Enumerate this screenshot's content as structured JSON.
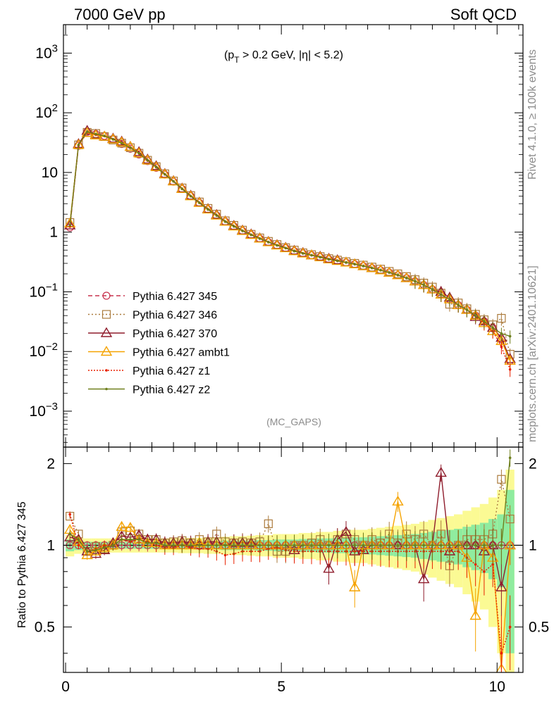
{
  "header": {
    "left": "7000 GeV pp",
    "right": "Soft QCD"
  },
  "side_text": {
    "top": "Rivet 4.1.0, ≥ 100k events",
    "bottom": "mcplots.cern.ch [arXiv:2401.10621]"
  },
  "cut_label": "(p_T > 0.2 GeV, |η| < 5.2)",
  "analysis_label": "(MC_GAPS)",
  "ratio_ylabel": "Ratio to Pythia 6.427 345",
  "chart_data": [
    {
      "type": "line",
      "yscale": "log",
      "xlim": [
        -0.05,
        10.6
      ],
      "ylim": [
        0.00025,
        3000
      ],
      "ytick_labels": [
        "10^-3",
        "10^-2",
        "10^-1",
        "1",
        "10",
        "10^2",
        "10^3"
      ],
      "ytick_values": [
        0.001,
        0.01,
        0.1,
        1,
        10,
        100,
        1000
      ],
      "x": [
        0.1,
        0.3,
        0.5,
        0.7,
        0.9,
        1.1,
        1.3,
        1.5,
        1.7,
        1.9,
        2.1,
        2.3,
        2.5,
        2.7,
        2.9,
        3.1,
        3.3,
        3.5,
        3.7,
        3.9,
        4.1,
        4.3,
        4.5,
        4.7,
        4.9,
        5.1,
        5.3,
        5.5,
        5.7,
        5.9,
        6.1,
        6.3,
        6.5,
        6.7,
        6.9,
        7.1,
        7.3,
        7.5,
        7.7,
        7.9,
        8.1,
        8.3,
        8.5,
        8.7,
        8.9,
        9.1,
        9.3,
        9.5,
        9.7,
        9.9,
        10.1,
        10.3
      ],
      "series": [
        {
          "name": "Pythia 6.427 345",
          "color": "#c8334f",
          "marker": "circle",
          "dash": "6,4",
          "values": [
            1.2,
            28,
            48,
            44,
            41,
            36,
            30,
            25,
            20,
            15.5,
            12,
            9.2,
            7.0,
            5.3,
            4.0,
            3.1,
            2.4,
            1.9,
            1.5,
            1.25,
            1.05,
            0.9,
            0.78,
            0.68,
            0.6,
            0.54,
            0.48,
            0.44,
            0.41,
            0.38,
            0.35,
            0.33,
            0.31,
            0.29,
            0.27,
            0.25,
            0.23,
            0.21,
            0.19,
            0.17,
            0.15,
            0.13,
            0.11,
            0.09,
            0.075,
            0.06,
            0.05,
            0.04,
            0.032,
            0.025,
            0.016,
            0.007
          ]
        },
        {
          "name": "Pythia 6.427 346",
          "color": "#ab7b3d",
          "marker": "square",
          "dash": "2,3",
          "values": [
            1.45,
            29,
            47,
            45,
            40,
            35,
            31,
            26,
            21,
            16,
            12.5,
            9.5,
            7.2,
            5.5,
            4.1,
            3.2,
            2.5,
            2.0,
            1.55,
            1.3,
            1.08,
            0.92,
            0.8,
            0.7,
            0.62,
            0.55,
            0.5,
            0.45,
            0.42,
            0.39,
            0.36,
            0.34,
            0.32,
            0.3,
            0.28,
            0.26,
            0.24,
            0.22,
            0.2,
            0.18,
            0.16,
            0.14,
            0.12,
            0.095,
            0.062,
            0.065,
            0.052,
            0.042,
            0.034,
            0.028,
            0.036,
            0.009
          ]
        },
        {
          "name": "Pythia 6.427 370",
          "color": "#8f1c2c",
          "marker": "triangle",
          "dash": "",
          "values": [
            1.3,
            30,
            50,
            43,
            40,
            37,
            33,
            27,
            22,
            16.5,
            12.8,
            9.5,
            7.2,
            5.4,
            4.1,
            3.15,
            2.45,
            1.95,
            1.52,
            1.28,
            1.07,
            0.92,
            0.79,
            0.69,
            0.61,
            0.55,
            0.49,
            0.45,
            0.41,
            0.39,
            0.36,
            0.34,
            0.31,
            0.29,
            0.27,
            0.25,
            0.23,
            0.21,
            0.19,
            0.17,
            0.15,
            0.13,
            0.11,
            0.1,
            0.08,
            0.06,
            0.05,
            0.038,
            0.032,
            0.025,
            0.017,
            0.0075
          ]
        },
        {
          "name": "Pythia 6.427 ambt1",
          "color": "#f5a300",
          "marker": "triangle",
          "dash": "",
          "values": [
            1.4,
            29,
            46,
            42,
            40,
            36,
            32,
            27,
            21,
            16,
            12.3,
            9.3,
            7.1,
            5.3,
            4.0,
            3.1,
            2.4,
            1.9,
            1.5,
            1.25,
            1.05,
            0.9,
            0.78,
            0.68,
            0.6,
            0.54,
            0.48,
            0.44,
            0.41,
            0.38,
            0.35,
            0.33,
            0.31,
            0.29,
            0.27,
            0.25,
            0.23,
            0.21,
            0.19,
            0.17,
            0.15,
            0.13,
            0.11,
            0.09,
            0.075,
            0.06,
            0.05,
            0.04,
            0.03,
            0.022,
            0.015,
            0.007
          ]
        },
        {
          "name": "Pythia 6.427 z1",
          "color": "#e82000",
          "marker": "dot",
          "dash": "2,2",
          "values": [
            1.25,
            28,
            47,
            43,
            41,
            36,
            31,
            26,
            21,
            15.8,
            12.2,
            9.3,
            7.1,
            5.3,
            4.0,
            3.1,
            2.4,
            1.9,
            1.5,
            1.25,
            1.05,
            0.9,
            0.78,
            0.68,
            0.6,
            0.54,
            0.48,
            0.44,
            0.41,
            0.38,
            0.35,
            0.33,
            0.31,
            0.29,
            0.27,
            0.25,
            0.23,
            0.21,
            0.19,
            0.17,
            0.15,
            0.13,
            0.11,
            0.09,
            0.075,
            0.06,
            0.05,
            0.04,
            0.03,
            0.022,
            0.012,
            0.005
          ]
        },
        {
          "name": "Pythia 6.427 z2",
          "color": "#6e7f1c",
          "marker": "dot",
          "dash": "",
          "values": [
            1.3,
            29,
            48,
            44,
            41,
            36,
            31,
            26,
            21,
            16,
            12.3,
            9.3,
            7.1,
            5.3,
            4.0,
            3.1,
            2.4,
            1.9,
            1.5,
            1.25,
            1.05,
            0.9,
            0.78,
            0.68,
            0.6,
            0.54,
            0.48,
            0.44,
            0.41,
            0.38,
            0.35,
            0.33,
            0.31,
            0.29,
            0.27,
            0.25,
            0.23,
            0.21,
            0.19,
            0.17,
            0.15,
            0.13,
            0.11,
            0.09,
            0.075,
            0.06,
            0.05,
            0.04,
            0.032,
            0.025,
            0.02,
            0.018
          ]
        }
      ],
      "legend": [
        "Pythia 6.427 345",
        "Pythia 6.427 346",
        "Pythia 6.427 370",
        "Pythia 6.427 ambt1",
        "Pythia 6.427 z1",
        "Pythia 6.427 z2"
      ],
      "legend_position": "lower-left"
    },
    {
      "type": "line",
      "ylabel": "Ratio to Pythia 6.427 345",
      "xlim": [
        -0.05,
        10.6
      ],
      "ylim": [
        0.34,
        2.3
      ],
      "xtick_labels": [
        "0",
        "5",
        "10"
      ],
      "xtick_values": [
        0,
        5,
        10
      ],
      "ytick_labels": [
        "0.5",
        "1",
        "2"
      ],
      "ytick_values": [
        0.5,
        1,
        2
      ],
      "reference_line": 1,
      "bands": {
        "x_edges": [
          0.0,
          0.2,
          0.4,
          0.6,
          0.8,
          1.0,
          1.2,
          1.4,
          1.6,
          1.8,
          2.0,
          2.2,
          2.4,
          2.6,
          2.8,
          3.0,
          3.2,
          3.4,
          3.6,
          3.8,
          4.0,
          4.2,
          4.4,
          4.6,
          4.8,
          5.0,
          5.2,
          5.4,
          5.6,
          5.8,
          6.0,
          6.2,
          6.4,
          6.6,
          6.8,
          7.0,
          7.2,
          7.4,
          7.6,
          7.8,
          8.0,
          8.2,
          8.4,
          8.6,
          8.8,
          9.0,
          9.2,
          9.4,
          9.6,
          9.8,
          10.0,
          10.2,
          10.4
        ],
        "inner_halfwidth": [
          0.05,
          0.04,
          0.03,
          0.03,
          0.03,
          0.03,
          0.03,
          0.03,
          0.03,
          0.03,
          0.03,
          0.03,
          0.03,
          0.03,
          0.03,
          0.03,
          0.035,
          0.035,
          0.04,
          0.04,
          0.04,
          0.04,
          0.045,
          0.045,
          0.05,
          0.05,
          0.05,
          0.055,
          0.055,
          0.06,
          0.06,
          0.065,
          0.065,
          0.07,
          0.07,
          0.075,
          0.08,
          0.085,
          0.09,
          0.095,
          0.1,
          0.11,
          0.12,
          0.13,
          0.14,
          0.15,
          0.17,
          0.19,
          0.21,
          0.25,
          0.3,
          0.6
        ],
        "outer_halfwidth": [
          0.09,
          0.07,
          0.06,
          0.06,
          0.06,
          0.06,
          0.06,
          0.06,
          0.06,
          0.06,
          0.06,
          0.06,
          0.06,
          0.065,
          0.065,
          0.065,
          0.07,
          0.07,
          0.075,
          0.08,
          0.08,
          0.085,
          0.09,
          0.09,
          0.1,
          0.1,
          0.1,
          0.11,
          0.11,
          0.12,
          0.12,
          0.13,
          0.13,
          0.14,
          0.14,
          0.15,
          0.16,
          0.17,
          0.18,
          0.19,
          0.2,
          0.22,
          0.24,
          0.26,
          0.28,
          0.3,
          0.34,
          0.38,
          0.42,
          0.5,
          0.6,
          0.9
        ]
      },
      "series": [
        {
          "name": "Pythia 6.427 345",
          "values": [
            1,
            1,
            1,
            1,
            1,
            1,
            1,
            1,
            1,
            1,
            1,
            1,
            1,
            1,
            1,
            1,
            1,
            1,
            1,
            1,
            1,
            1,
            1,
            1,
            1,
            1,
            1,
            1,
            1,
            1,
            1,
            1,
            1,
            1,
            1,
            1,
            1,
            1,
            1,
            1,
            1,
            1,
            1,
            1,
            1,
            1,
            1,
            1,
            1,
            1,
            1,
            1
          ]
        },
        {
          "name": "Pythia 6.427 346",
          "values": [
            1.28,
            1.1,
            0.95,
            0.99,
            0.97,
            1.0,
            1.12,
            1.13,
            1.1,
            1.05,
            1.05,
            1.02,
            1.03,
            1.04,
            1.02,
            1.05,
            1.03,
            1.1,
            1.03,
            1.02,
            1.03,
            1.02,
            1.03,
            1.2,
            0.95,
            0.95,
            1.0,
            1.0,
            1.02,
            1.05,
            1.0,
            1.05,
            1.1,
            1.05,
            1.0,
            1.05,
            1.02,
            1.1,
            1.02,
            1.1,
            1.05,
            1.1,
            1.0,
            1.1,
            0.84,
            1.0,
            1.05,
            1.05,
            1.05,
            1.1,
            1.75,
            1.25
          ]
        },
        {
          "name": "Pythia 6.427 370",
          "values": [
            1.07,
            1.05,
            0.95,
            0.93,
            0.96,
            1.02,
            1.08,
            1.07,
            1.09,
            1.05,
            1.05,
            1.02,
            1.02,
            1.03,
            1.02,
            1.0,
            1.03,
            1.03,
            1.0,
            1.02,
            1.02,
            1.02,
            1.0,
            1.0,
            1.0,
            1.0,
            0.96,
            1.0,
            1.0,
            1.0,
            0.82,
            1.05,
            1.12,
            0.95,
            0.96,
            1.0,
            1.0,
            1.0,
            1.0,
            1.0,
            1.0,
            0.75,
            1.0,
            1.85,
            0.95,
            1.0,
            1.0,
            1.0,
            0.95,
            1.0,
            0.7,
            1.0
          ]
        },
        {
          "name": "Pythia 6.427 ambt1",
          "values": [
            1.14,
            1.03,
            0.92,
            0.95,
            0.98,
            1.0,
            1.17,
            1.16,
            1.05,
            1.02,
            1.02,
            1.0,
            1.0,
            1.0,
            1.0,
            1.02,
            1.0,
            1.0,
            1.0,
            1.0,
            1.0,
            1.0,
            1.0,
            1.0,
            1.0,
            1.0,
            1.0,
            1.0,
            1.0,
            1.0,
            1.0,
            1.0,
            1.0,
            0.7,
            1.0,
            1.0,
            1.0,
            1.0,
            1.45,
            1.0,
            1.0,
            1.0,
            1.0,
            1.0,
            1.0,
            1.0,
            0.9,
            0.55,
            1.0,
            0.9,
            0.35,
            1.0
          ]
        },
        {
          "name": "Pythia 6.427 z1",
          "values": [
            1.3,
            1.0,
            0.95,
            0.97,
            1.0,
            1.0,
            1.05,
            1.03,
            1.05,
            1.03,
            1.0,
            0.98,
            0.98,
            1.0,
            0.98,
            0.97,
            0.97,
            0.95,
            0.92,
            0.93,
            0.95,
            0.95,
            0.95,
            0.97,
            0.98,
            0.96,
            0.95,
            0.95,
            0.95,
            0.95,
            0.95,
            0.95,
            0.95,
            0.95,
            0.95,
            0.95,
            0.95,
            0.95,
            0.95,
            0.95,
            0.95,
            0.95,
            0.95,
            0.95,
            0.95,
            0.95,
            0.9,
            0.85,
            0.8,
            0.85,
            0.4,
            0.5
          ]
        },
        {
          "name": "Pythia 6.427 z2",
          "values": [
            1.1,
            1.05,
            0.95,
            0.96,
            0.98,
            1.0,
            1.05,
            1.05,
            1.05,
            1.02,
            1.02,
            1.0,
            1.0,
            1.0,
            1.0,
            1.0,
            1.0,
            1.0,
            1.0,
            1.0,
            1.0,
            1.0,
            1.0,
            1.0,
            1.0,
            1.0,
            1.0,
            1.0,
            1.0,
            1.0,
            1.0,
            1.0,
            1.0,
            1.0,
            1.0,
            1.0,
            1.0,
            1.0,
            1.0,
            1.0,
            1.0,
            1.0,
            1.0,
            1.0,
            1.0,
            1.0,
            1.0,
            1.0,
            1.0,
            1.0,
            1.0,
            2.1
          ]
        }
      ]
    }
  ]
}
